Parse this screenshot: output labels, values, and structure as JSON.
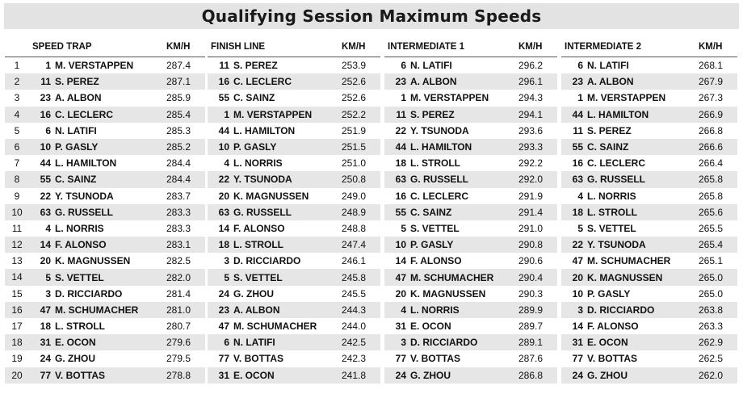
{
  "title": "Qualifying Session Maximum Speeds",
  "ranks": [
    "1",
    "2",
    "3",
    "4",
    "5",
    "6",
    "7",
    "8",
    "9",
    "10",
    "11",
    "12",
    "13",
    "14",
    "15",
    "16",
    "17",
    "18",
    "19",
    "20"
  ],
  "panels": [
    {
      "label": "SPEED TRAP",
      "unit": "KM/H",
      "rows": [
        {
          "num": "1",
          "driver": "M. VERSTAPPEN",
          "speed": "287.4"
        },
        {
          "num": "11",
          "driver": "S. PEREZ",
          "speed": "287.1"
        },
        {
          "num": "23",
          "driver": "A. ALBON",
          "speed": "285.9"
        },
        {
          "num": "16",
          "driver": "C. LECLERC",
          "speed": "285.4"
        },
        {
          "num": "6",
          "driver": "N. LATIFI",
          "speed": "285.3"
        },
        {
          "num": "10",
          "driver": "P. GASLY",
          "speed": "285.2"
        },
        {
          "num": "44",
          "driver": "L. HAMILTON",
          "speed": "284.4"
        },
        {
          "num": "55",
          "driver": "C. SAINZ",
          "speed": "284.4"
        },
        {
          "num": "22",
          "driver": "Y. TSUNODA",
          "speed": "283.7"
        },
        {
          "num": "63",
          "driver": "G. RUSSELL",
          "speed": "283.3"
        },
        {
          "num": "4",
          "driver": "L. NORRIS",
          "speed": "283.3"
        },
        {
          "num": "14",
          "driver": "F. ALONSO",
          "speed": "283.1"
        },
        {
          "num": "20",
          "driver": "K. MAGNUSSEN",
          "speed": "282.5"
        },
        {
          "num": "5",
          "driver": "S. VETTEL",
          "speed": "282.0"
        },
        {
          "num": "3",
          "driver": "D. RICCIARDO",
          "speed": "281.4"
        },
        {
          "num": "47",
          "driver": "M. SCHUMACHER",
          "speed": "281.0"
        },
        {
          "num": "18",
          "driver": "L. STROLL",
          "speed": "280.7"
        },
        {
          "num": "31",
          "driver": "E. OCON",
          "speed": "279.6"
        },
        {
          "num": "24",
          "driver": "G. ZHOU",
          "speed": "279.5"
        },
        {
          "num": "77",
          "driver": "V. BOTTAS",
          "speed": "278.8"
        }
      ]
    },
    {
      "label": "FINISH LINE",
      "unit": "KM/H",
      "rows": [
        {
          "num": "11",
          "driver": "S. PEREZ",
          "speed": "253.9"
        },
        {
          "num": "16",
          "driver": "C. LECLERC",
          "speed": "252.6"
        },
        {
          "num": "55",
          "driver": "C. SAINZ",
          "speed": "252.6"
        },
        {
          "num": "1",
          "driver": "M. VERSTAPPEN",
          "speed": "252.2"
        },
        {
          "num": "44",
          "driver": "L. HAMILTON",
          "speed": "251.9"
        },
        {
          "num": "10",
          "driver": "P. GASLY",
          "speed": "251.5"
        },
        {
          "num": "4",
          "driver": "L. NORRIS",
          "speed": "251.0"
        },
        {
          "num": "22",
          "driver": "Y. TSUNODA",
          "speed": "250.8"
        },
        {
          "num": "20",
          "driver": "K. MAGNUSSEN",
          "speed": "249.0"
        },
        {
          "num": "63",
          "driver": "G. RUSSELL",
          "speed": "248.9"
        },
        {
          "num": "14",
          "driver": "F. ALONSO",
          "speed": "248.8"
        },
        {
          "num": "18",
          "driver": "L. STROLL",
          "speed": "247.4"
        },
        {
          "num": "3",
          "driver": "D. RICCIARDO",
          "speed": "246.1"
        },
        {
          "num": "5",
          "driver": "S. VETTEL",
          "speed": "245.8"
        },
        {
          "num": "24",
          "driver": "G. ZHOU",
          "speed": "245.5"
        },
        {
          "num": "23",
          "driver": "A. ALBON",
          "speed": "244.3"
        },
        {
          "num": "47",
          "driver": "M. SCHUMACHER",
          "speed": "244.0"
        },
        {
          "num": "6",
          "driver": "N. LATIFI",
          "speed": "242.5"
        },
        {
          "num": "77",
          "driver": "V. BOTTAS",
          "speed": "242.3"
        },
        {
          "num": "31",
          "driver": "E. OCON",
          "speed": "241.8"
        }
      ]
    },
    {
      "label": "INTERMEDIATE 1",
      "unit": "KM/H",
      "rows": [
        {
          "num": "6",
          "driver": "N. LATIFI",
          "speed": "296.2"
        },
        {
          "num": "23",
          "driver": "A. ALBON",
          "speed": "296.1"
        },
        {
          "num": "1",
          "driver": "M. VERSTAPPEN",
          "speed": "294.3"
        },
        {
          "num": "11",
          "driver": "S. PEREZ",
          "speed": "294.1"
        },
        {
          "num": "22",
          "driver": "Y. TSUNODA",
          "speed": "293.6"
        },
        {
          "num": "44",
          "driver": "L. HAMILTON",
          "speed": "293.3"
        },
        {
          "num": "18",
          "driver": "L. STROLL",
          "speed": "292.2"
        },
        {
          "num": "63",
          "driver": "G. RUSSELL",
          "speed": "292.0"
        },
        {
          "num": "16",
          "driver": "C. LECLERC",
          "speed": "291.9"
        },
        {
          "num": "55",
          "driver": "C. SAINZ",
          "speed": "291.4"
        },
        {
          "num": "5",
          "driver": "S. VETTEL",
          "speed": "291.0"
        },
        {
          "num": "10",
          "driver": "P. GASLY",
          "speed": "290.8"
        },
        {
          "num": "14",
          "driver": "F. ALONSO",
          "speed": "290.6"
        },
        {
          "num": "47",
          "driver": "M. SCHUMACHER",
          "speed": "290.4"
        },
        {
          "num": "20",
          "driver": "K. MAGNUSSEN",
          "speed": "290.3"
        },
        {
          "num": "4",
          "driver": "L. NORRIS",
          "speed": "289.9"
        },
        {
          "num": "31",
          "driver": "E. OCON",
          "speed": "289.7"
        },
        {
          "num": "3",
          "driver": "D. RICCIARDO",
          "speed": "289.1"
        },
        {
          "num": "77",
          "driver": "V. BOTTAS",
          "speed": "287.6"
        },
        {
          "num": "24",
          "driver": "G. ZHOU",
          "speed": "286.8"
        }
      ]
    },
    {
      "label": "INTERMEDIATE 2",
      "unit": "KM/H",
      "rows": [
        {
          "num": "6",
          "driver": "N. LATIFI",
          "speed": "268.1"
        },
        {
          "num": "23",
          "driver": "A. ALBON",
          "speed": "267.9"
        },
        {
          "num": "1",
          "driver": "M. VERSTAPPEN",
          "speed": "267.3"
        },
        {
          "num": "44",
          "driver": "L. HAMILTON",
          "speed": "266.9"
        },
        {
          "num": "11",
          "driver": "S. PEREZ",
          "speed": "266.8"
        },
        {
          "num": "55",
          "driver": "C. SAINZ",
          "speed": "266.6"
        },
        {
          "num": "16",
          "driver": "C. LECLERC",
          "speed": "266.4"
        },
        {
          "num": "63",
          "driver": "G. RUSSELL",
          "speed": "265.8"
        },
        {
          "num": "4",
          "driver": "L. NORRIS",
          "speed": "265.8"
        },
        {
          "num": "18",
          "driver": "L. STROLL",
          "speed": "265.6"
        },
        {
          "num": "5",
          "driver": "S. VETTEL",
          "speed": "265.5"
        },
        {
          "num": "22",
          "driver": "Y. TSUNODA",
          "speed": "265.4"
        },
        {
          "num": "47",
          "driver": "M. SCHUMACHER",
          "speed": "265.1"
        },
        {
          "num": "20",
          "driver": "K. MAGNUSSEN",
          "speed": "265.0"
        },
        {
          "num": "10",
          "driver": "P. GASLY",
          "speed": "265.0"
        },
        {
          "num": "3",
          "driver": "D. RICCIARDO",
          "speed": "263.8"
        },
        {
          "num": "14",
          "driver": "F. ALONSO",
          "speed": "263.3"
        },
        {
          "num": "31",
          "driver": "E. OCON",
          "speed": "262.9"
        },
        {
          "num": "77",
          "driver": "V. BOTTAS",
          "speed": "262.5"
        },
        {
          "num": "24",
          "driver": "G. ZHOU",
          "speed": "262.0"
        }
      ]
    }
  ]
}
